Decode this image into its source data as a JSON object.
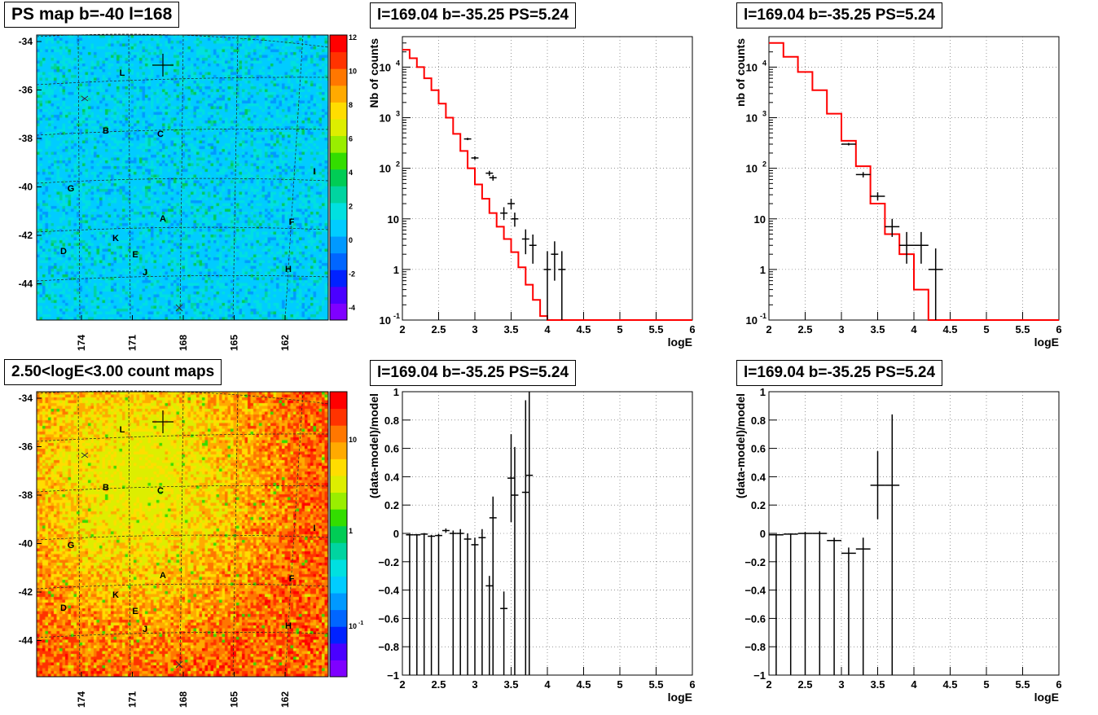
{
  "panels": {
    "map_top_title": "PS map b=-40 l=168",
    "map_bottom_title": "2.50<logE<3.00 count maps",
    "spec_top_title": "l=169.04 b=-35.25 PS=5.24",
    "spec_top2_title": "l=169.04 b=-35.25 PS=5.24",
    "res_title": "l=169.04 b=-35.25 PS=5.24",
    "res2_title": "l=169.04 b=-35.25 PS=5.24"
  },
  "maps": {
    "y_ticks": [
      "-34",
      "-36",
      "-38",
      "-40",
      "-42",
      "-44"
    ],
    "x_ticks": [
      "174",
      "171",
      "168",
      "165",
      "162"
    ],
    "source_labels": [
      "L",
      "B",
      "C",
      "G",
      "I",
      "A",
      "F",
      "K",
      "D",
      "E",
      "J",
      "H"
    ],
    "top_colorbar_ticks": [
      "12",
      "10",
      "8",
      "6",
      "4",
      "2",
      "0",
      "-2",
      "-4"
    ],
    "bottom_colorbar_ticks": [
      "10",
      "1",
      "10",
      "-1"
    ],
    "top_palette": [
      "#7f00ff",
      "#4a00ff",
      "#0022ff",
      "#0066ff",
      "#0099ff",
      "#00ccff",
      "#00e0e0",
      "#00d4a0",
      "#00cc55",
      "#33dd00",
      "#99ee00",
      "#ddee00",
      "#ffdd00",
      "#ffaa00",
      "#ff7700",
      "#ff3300",
      "#ff0000"
    ],
    "bottom_palette": [
      "#7f00ff",
      "#4a00ff",
      "#0022ff",
      "#0066ff",
      "#0099ff",
      "#00ccff",
      "#00e0e0",
      "#00d4a0",
      "#00cc55",
      "#33dd00",
      "#99ee00",
      "#ddee00",
      "#ffdd00",
      "#ffaa00",
      "#ff7700",
      "#ff3300",
      "#ff0000"
    ]
  },
  "chart_data": [
    {
      "type": "line",
      "panel": "spectrum-top-left",
      "xlabel": "logE",
      "ylabel": "Nb of counts",
      "xlim": [
        2,
        6
      ],
      "ylim": [
        0.1,
        40000
      ],
      "log_y": true,
      "grid": true,
      "x_ticks": [
        "2",
        "2.5",
        "3",
        "3.5",
        "4",
        "4.5",
        "5",
        "5.5",
        "6"
      ],
      "y_ticks": [
        "10^-1",
        "1",
        "10",
        "10^2",
        "10^3",
        "10^4"
      ],
      "series": [
        {
          "name": "",
          "kind": "step",
          "color": "#ff0000",
          "edges": [
            2.0,
            2.1,
            2.2,
            2.3,
            2.4,
            2.5,
            2.6,
            2.7,
            2.8,
            2.9,
            3.0,
            3.1,
            3.2,
            3.3,
            3.4,
            3.5,
            3.6,
            3.7,
            3.8,
            3.9,
            4.0,
            4.1,
            4.2,
            6.0
          ],
          "values": [
            22000,
            15000,
            10000,
            6000,
            3500,
            1900,
            1000,
            480,
            220,
            100,
            48,
            25,
            13,
            7,
            4,
            2.2,
            1.1,
            0.5,
            0.25,
            0.12,
            0.05,
            0.02,
            0.1
          ]
        },
        {
          "name": "",
          "kind": "errors",
          "color": "#000000",
          "x": [
            2.9,
            3.0,
            3.2,
            3.25,
            3.4,
            3.5,
            3.55,
            3.7,
            3.8,
            4.0,
            4.1,
            4.2
          ],
          "y": [
            380,
            160,
            80,
            65,
            13,
            20,
            10,
            4,
            3,
            1,
            2,
            1
          ],
          "yerr_lo": [
            20,
            13,
            9,
            8,
            3.5,
            4.5,
            3,
            2,
            1.7,
            0.9,
            1.4,
            0.9
          ],
          "yerr_hi": [
            20,
            13,
            9,
            8,
            4,
            5,
            3.3,
            2.2,
            1.9,
            1.3,
            1.6,
            1.3
          ],
          "xerr": 0.05
        }
      ]
    },
    {
      "type": "line",
      "panel": "spectrum-top-right",
      "xlabel": "logE",
      "ylabel": "nb of counts",
      "xlim": [
        2,
        6
      ],
      "ylim": [
        0.1,
        40000
      ],
      "log_y": true,
      "grid": true,
      "x_ticks": [
        "2",
        "2.5",
        "3",
        "3.5",
        "4",
        "4.5",
        "5",
        "5.5",
        "6"
      ],
      "y_ticks": [
        "10^-1",
        "1",
        "10",
        "10^2",
        "10^3",
        "10^4"
      ],
      "series": [
        {
          "name": "",
          "kind": "step",
          "color": "#ff0000",
          "edges": [
            2.0,
            2.2,
            2.4,
            2.6,
            2.8,
            3.0,
            3.2,
            3.4,
            3.6,
            3.8,
            4.0,
            4.2,
            4.4,
            6.0
          ],
          "values": [
            30000,
            16000,
            8000,
            3500,
            1200,
            350,
            110,
            20,
            5,
            2,
            0.4,
            0.08,
            0.1
          ]
        },
        {
          "name": "",
          "kind": "errors",
          "color": "#000000",
          "x": [
            3.1,
            3.3,
            3.5,
            3.7,
            3.9,
            4.1,
            4.3
          ],
          "y": [
            300,
            75,
            28,
            7,
            3,
            3,
            1
          ],
          "yerr_lo": [
            17,
            9,
            5,
            2.6,
            1.7,
            1.7,
            0.9
          ],
          "yerr_hi": [
            17,
            9,
            5.5,
            3,
            2.5,
            2.5,
            1.6
          ],
          "xerr": 0.1
        }
      ]
    },
    {
      "type": "scatter",
      "panel": "residual-left",
      "xlabel": "logE",
      "ylabel": "(data-model)/model",
      "xlim": [
        2,
        6
      ],
      "ylim": [
        -1,
        1
      ],
      "grid": true,
      "x_ticks": [
        "2",
        "2.5",
        "3",
        "3.5",
        "4",
        "4.5",
        "5",
        "5.5",
        "6"
      ],
      "y_ticks": [
        "-1",
        "-0.8",
        "-0.6",
        "-0.4",
        "-0.2",
        "0",
        "0.2",
        "0.4",
        "0.6",
        "0.8",
        "1"
      ],
      "series": [
        {
          "name": "",
          "color": "#000000",
          "x": [
            2.1,
            2.2,
            2.3,
            2.4,
            2.5,
            2.6,
            2.7,
            2.8,
            2.9,
            3.0,
            3.1,
            3.2,
            3.25,
            3.4,
            3.5,
            3.55,
            3.7,
            3.75
          ],
          "y": [
            -0.01,
            -0.01,
            -0.005,
            -0.02,
            -0.015,
            0.02,
            0.0,
            0.0,
            -0.04,
            -0.08,
            -0.03,
            -0.37,
            0.11,
            -0.53,
            0.39,
            0.27,
            0.29,
            0.41
          ],
          "yerr": [
            0.005,
            0.006,
            0.008,
            0.01,
            0.012,
            0.015,
            0.02,
            0.03,
            0.04,
            0.05,
            0.06,
            0.07,
            0.15,
            0.12,
            0.31,
            0.34,
            0.65,
            0.8
          ],
          "xerr": 0.05
        }
      ]
    },
    {
      "type": "scatter",
      "panel": "residual-right",
      "xlabel": "logE",
      "ylabel": "(data-model)/model",
      "xlim": [
        2,
        6
      ],
      "ylim": [
        -1,
        1
      ],
      "grid": true,
      "x_ticks": [
        "2",
        "2.5",
        "3",
        "3.5",
        "4",
        "4.5",
        "5",
        "5.5",
        "6"
      ],
      "y_ticks": [
        "-1",
        "-0.8",
        "-0.6",
        "-0.4",
        "-0.2",
        "0",
        "0.2",
        "0.4",
        "0.6",
        "0.8",
        "1"
      ],
      "series": [
        {
          "name": "",
          "color": "#000000",
          "x": [
            2.1,
            2.3,
            2.5,
            2.7,
            2.9,
            3.1,
            3.3,
            3.5,
            3.7
          ],
          "y": [
            -0.01,
            -0.005,
            0.0,
            0.0,
            -0.05,
            -0.14,
            -0.11,
            0.34,
            0.34
          ],
          "yerr": [
            0.004,
            0.006,
            0.01,
            0.015,
            0.02,
            0.04,
            0.08,
            0.24,
            0.5
          ],
          "xerr": 0.1
        }
      ]
    }
  ]
}
